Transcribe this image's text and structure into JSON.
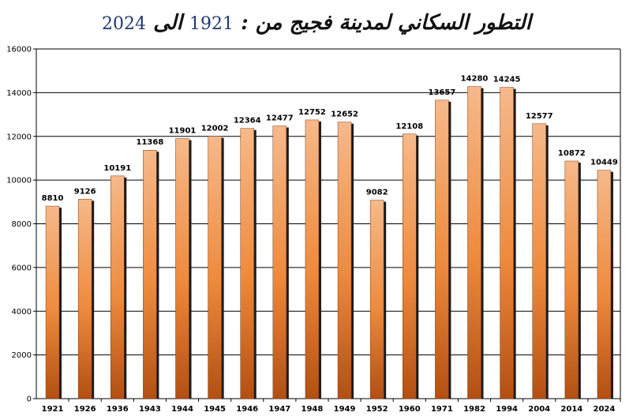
{
  "title": {
    "text": "التطور السكاني لمدينة فجيج من :",
    "from_year": "1921",
    "connector": "الى",
    "to_year": "2024"
  },
  "colors": {
    "bar_top": "#f6b98a",
    "bar_mid": "#ee8a3c",
    "bar_bottom": "#b34f12",
    "shadow": "#1a1a1a",
    "grid": "#000000",
    "title_years": "#1f3a6e"
  },
  "chart_data": {
    "type": "bar",
    "title": "التطور السكاني لمدينة فجيج من : 1921 الى 2024",
    "xlabel": "",
    "ylabel": "",
    "ylim": [
      0,
      16000
    ],
    "yticks": [
      0,
      2000,
      4000,
      6000,
      8000,
      10000,
      12000,
      14000,
      16000
    ],
    "grid": true,
    "categories": [
      "1921",
      "1926",
      "1936",
      "1943",
      "1944",
      "1945",
      "1946",
      "1947",
      "1948",
      "1949",
      "1952",
      "1960",
      "1971",
      "1982",
      "1994",
      "2004",
      "2014",
      "2024"
    ],
    "values": [
      8810,
      9126,
      10191,
      11368,
      11901,
      12002,
      12364,
      12477,
      12752,
      12652,
      9082,
      12108,
      13657,
      14280,
      14245,
      12577,
      10872,
      10449
    ],
    "data_labels": true
  }
}
